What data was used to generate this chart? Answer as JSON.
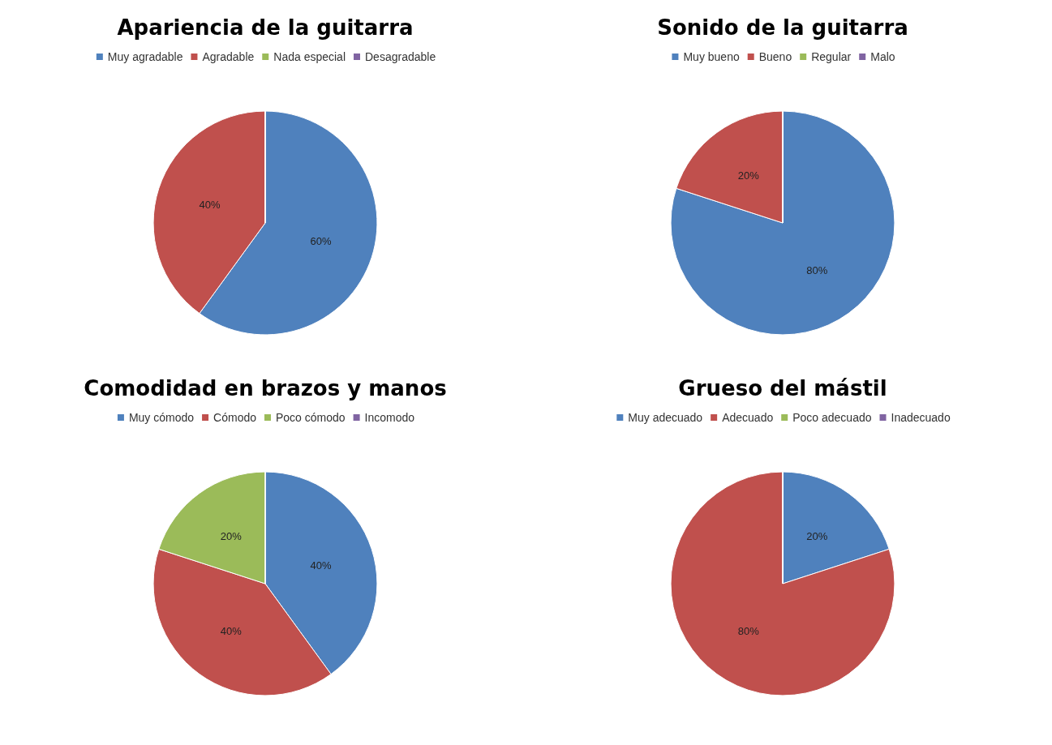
{
  "chart_data": [
    {
      "type": "pie",
      "title": "Apariencia de la guitarra",
      "categories": [
        "Muy agradable",
        "Agradable",
        "Nada especial",
        "Desagradable"
      ],
      "values": [
        60,
        40,
        0,
        0
      ],
      "value_labels": [
        "60%",
        "40%",
        null,
        null
      ],
      "colors": [
        "#4f81bd",
        "#c0504d",
        "#9bbb59",
        "#8064a2"
      ],
      "legend": "top"
    },
    {
      "type": "pie",
      "title": "Sonido de la guitarra",
      "categories": [
        "Muy bueno",
        "Bueno",
        "Regular",
        "Malo"
      ],
      "values": [
        80,
        20,
        0,
        0
      ],
      "value_labels": [
        "80%",
        "20%",
        null,
        null
      ],
      "colors": [
        "#4f81bd",
        "#c0504d",
        "#9bbb59",
        "#8064a2"
      ],
      "legend": "top"
    },
    {
      "type": "pie",
      "title": "Comodidad en brazos y manos",
      "categories": [
        "Muy cómodo",
        "Cómodo",
        "Poco cómodo",
        "Incomodo"
      ],
      "values": [
        40,
        40,
        20,
        0
      ],
      "value_labels": [
        "40%",
        "40%",
        "20%",
        null
      ],
      "colors": [
        "#4f81bd",
        "#c0504d",
        "#9bbb59",
        "#8064a2"
      ],
      "legend": "top"
    },
    {
      "type": "pie",
      "title": "Grueso del mástil",
      "categories": [
        "Muy adecuado",
        "Adecuado",
        "Poco adecuado",
        "Inadecuado"
      ],
      "values": [
        20,
        80,
        0,
        0
      ],
      "value_labels": [
        "20%",
        "80%",
        null,
        null
      ],
      "colors": [
        "#4f81bd",
        "#c0504d",
        "#9bbb59",
        "#8064a2"
      ],
      "legend": "top"
    }
  ]
}
